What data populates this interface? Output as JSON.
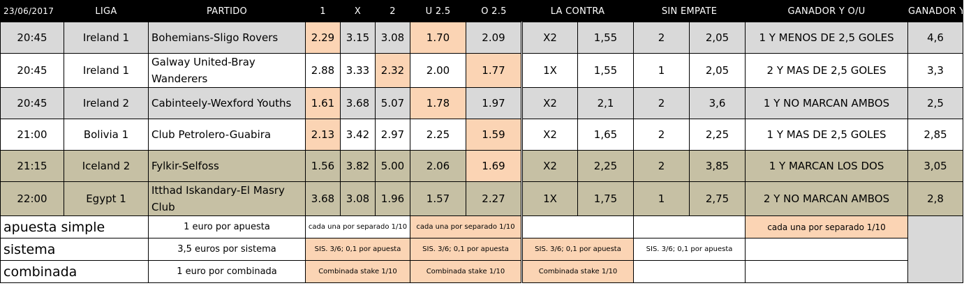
{
  "header": {
    "date": "23/06/2017",
    "liga": "LIGA",
    "partido": "PARTIDO",
    "one": "1",
    "x": "X",
    "two": "2",
    "u25": "U 2.5",
    "o25": "O 2.5",
    "la_contra": "LA CONTRA",
    "sin_empate": "SIN EMPATE",
    "ganador_ou": "GANADOR Y O/U",
    "ganador_gol": "GANADOR Y GOL O NO"
  },
  "rows": [
    {
      "time": "20:45",
      "league": "Ireland 1",
      "match": "Bohemians-Sligo Rovers",
      "o1": "2.29",
      "ox": "3.15",
      "o2": "3.08",
      "u25": "1.70",
      "o25": "2.09",
      "contra_pick": "X2",
      "contra_odd": "1,55",
      "sin_pick": "2",
      "sin_odd": "2,05",
      "gan_pick": "1 Y MENOS DE 2,5 GOLES",
      "gan_odd": "4,6"
    },
    {
      "time": "20:45",
      "league": "Ireland 1",
      "match": "Galway United-Bray Wanderers",
      "o1": "2.88",
      "ox": "3.33",
      "o2": "2.32",
      "u25": "2.00",
      "o25": "1.77",
      "contra_pick": "1X",
      "contra_odd": "1,55",
      "sin_pick": "1",
      "sin_odd": "2,05",
      "gan_pick": "2 Y MAS DE 2,5 GOLES",
      "gan_odd": "3,3"
    },
    {
      "time": "20:45",
      "league": "Ireland 2",
      "match": "Cabinteely-Wexford Youths",
      "o1": "1.61",
      "ox": "3.68",
      "o2": "5.07",
      "u25": "1.78",
      "o25": "1.97",
      "contra_pick": "X2",
      "contra_odd": "2,1",
      "sin_pick": "2",
      "sin_odd": "3,6",
      "gan_pick": "1 Y NO MARCAN AMBOS",
      "gan_odd": "2,5"
    },
    {
      "time": "21:00",
      "league": "Bolivia 1",
      "match": "Club Petrolero-Guabira",
      "o1": "2.13",
      "ox": "3.42",
      "o2": "2.97",
      "u25": "2.25",
      "o25": "1.59",
      "contra_pick": "X2",
      "contra_odd": "1,65",
      "sin_pick": "2",
      "sin_odd": "2,25",
      "gan_pick": "1 Y MAS DE 2,5 GOLES",
      "gan_odd": "2,85"
    },
    {
      "time": "21:15",
      "league": "Iceland 2",
      "match": "Fylkir-Selfoss",
      "o1": "1.56",
      "ox": "3.82",
      "o2": "5.00",
      "u25": "2.06",
      "o25": "1.69",
      "contra_pick": "X2",
      "contra_odd": "2,25",
      "sin_pick": "2",
      "sin_odd": "3,85",
      "gan_pick": "1 Y MARCAN LOS DOS",
      "gan_odd": "3,05"
    },
    {
      "time": "22:00",
      "league": "Egypt 1",
      "match": "Itthad Iskandary-El Masry Club",
      "o1": "3.68",
      "ox": "3.08",
      "o2": "1.96",
      "u25": "1.57",
      "o25": "2.27",
      "contra_pick": "1X",
      "contra_odd": "1,75",
      "sin_pick": "1",
      "sin_odd": "2,75",
      "gan_pick": "2 Y NO MARCAN AMBOS",
      "gan_odd": "2,8"
    }
  ],
  "footer": {
    "simple_label": "apuesta simple",
    "simple_desc": "1 euro por apuesta",
    "simple_1x2": "cada una por separado 1/10",
    "simple_ou": "cada una por separado 1/10",
    "simple_gan": "cada una por separado 1/10",
    "sistema_label": "sistema",
    "sistema_desc": "3,5 euros por sistema",
    "sistema_1x2": "SIS. 3/6; 0,1 por apuesta",
    "sistema_ou": "SIS. 3/6; 0,1 por apuesta",
    "sistema_contra": "SIS. 3/6; 0,1 por apuesta",
    "sistema_sin": "SIS. 3/6; 0,1 por apuesta",
    "combinada_label": "combinada",
    "combinada_desc": "1 euro por combinada",
    "combinada_1x2": "Combinada stake 1/10",
    "combinada_ou": "Combinada stake 1/10",
    "combinada_contra": "Combinada stake 1/10"
  },
  "colors": {
    "peach": "#fbd4b4",
    "light_gray": "#d9d9d9",
    "tan": "#c6c0a4",
    "header": "#000000"
  },
  "highlights": [
    [
      "o1",
      "u25"
    ],
    [
      "o2",
      "o25"
    ],
    [
      "o1",
      "u25"
    ],
    [
      "o1",
      "o25"
    ],
    [
      "o25"
    ],
    []
  ]
}
